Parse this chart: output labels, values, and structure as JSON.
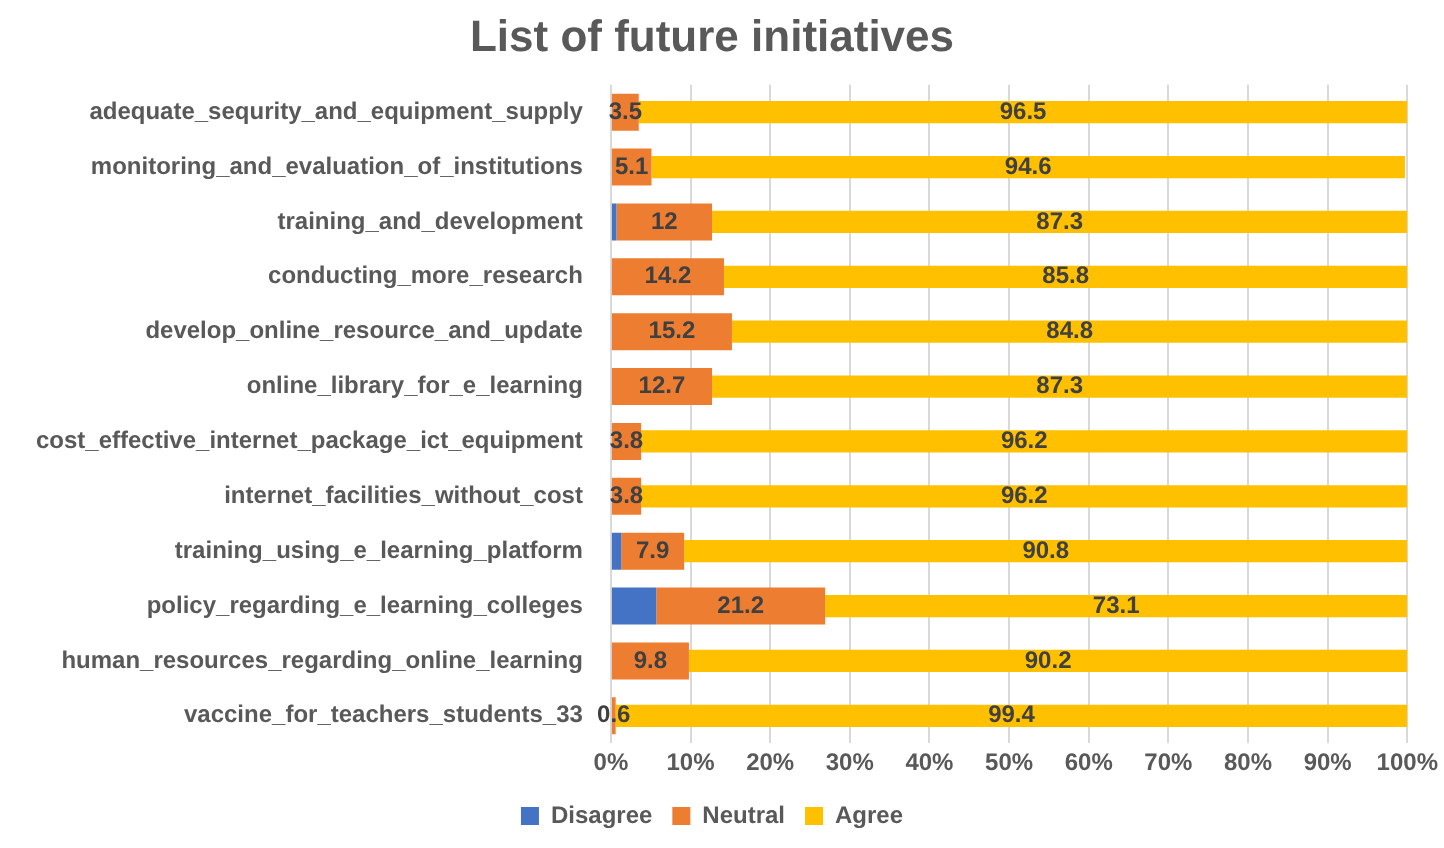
{
  "chart_data": {
    "type": "bar",
    "orientation": "horizontal",
    "stacked": true,
    "title": "List of future initiatives",
    "categories": [
      "adequate_sequrity_and_equipment_supply",
      "monitoring_and_evaluation_of_institutions",
      "training_and_development",
      "conducting_more_research",
      "develop_online_resource_and_update",
      "online_library_for_e_learning",
      "cost_effective_internet_package_ict_equipment",
      "internet_facilities_without_cost",
      "training_using_e_learning_platform",
      "policy_regarding_e_learning_colleges",
      "human_resources_regarding_online_learning",
      "vaccine_for_teachers_students_33"
    ],
    "series": [
      {
        "name": "Disagree",
        "color": "#4472c4",
        "values": [
          0,
          0,
          0.7,
          0,
          0,
          0,
          0,
          0,
          1.3,
          5.7,
          0,
          0
        ]
      },
      {
        "name": "Neutral",
        "color": "#ed7d31",
        "values": [
          3.5,
          5.1,
          12,
          14.2,
          15.2,
          12.7,
          3.8,
          3.8,
          7.9,
          21.2,
          9.8,
          0.6
        ],
        "value_labels": [
          "3.5",
          "5.1",
          "12",
          "14.2",
          "15.2",
          "12.7",
          "3.8",
          "3.8",
          "7.9",
          "21.2",
          "9.8",
          "0.6"
        ]
      },
      {
        "name": "Agree",
        "color": "#ffc000",
        "values": [
          96.5,
          94.6,
          87.3,
          85.8,
          84.8,
          87.3,
          96.2,
          96.2,
          90.8,
          73.1,
          90.2,
          99.4
        ],
        "value_labels": [
          "96.5",
          "94.6",
          "87.3",
          "85.8",
          "84.8",
          "87.3",
          "96.2",
          "96.2",
          "90.8",
          "73.1",
          "90.2",
          "99.4"
        ]
      }
    ],
    "xlim": [
      0,
      100
    ],
    "xticks": [
      {
        "value": 0,
        "label": "0%"
      },
      {
        "value": 10,
        "label": "10%"
      },
      {
        "value": 20,
        "label": "20%"
      },
      {
        "value": 30,
        "label": "30%"
      },
      {
        "value": 40,
        "label": "40%"
      },
      {
        "value": 50,
        "label": "50%"
      },
      {
        "value": 60,
        "label": "60%"
      },
      {
        "value": 70,
        "label": "70%"
      },
      {
        "value": 80,
        "label": "80%"
      },
      {
        "value": 90,
        "label": "90%"
      },
      {
        "value": 100,
        "label": "100%"
      }
    ],
    "grid": "x",
    "legend": "bottom"
  }
}
